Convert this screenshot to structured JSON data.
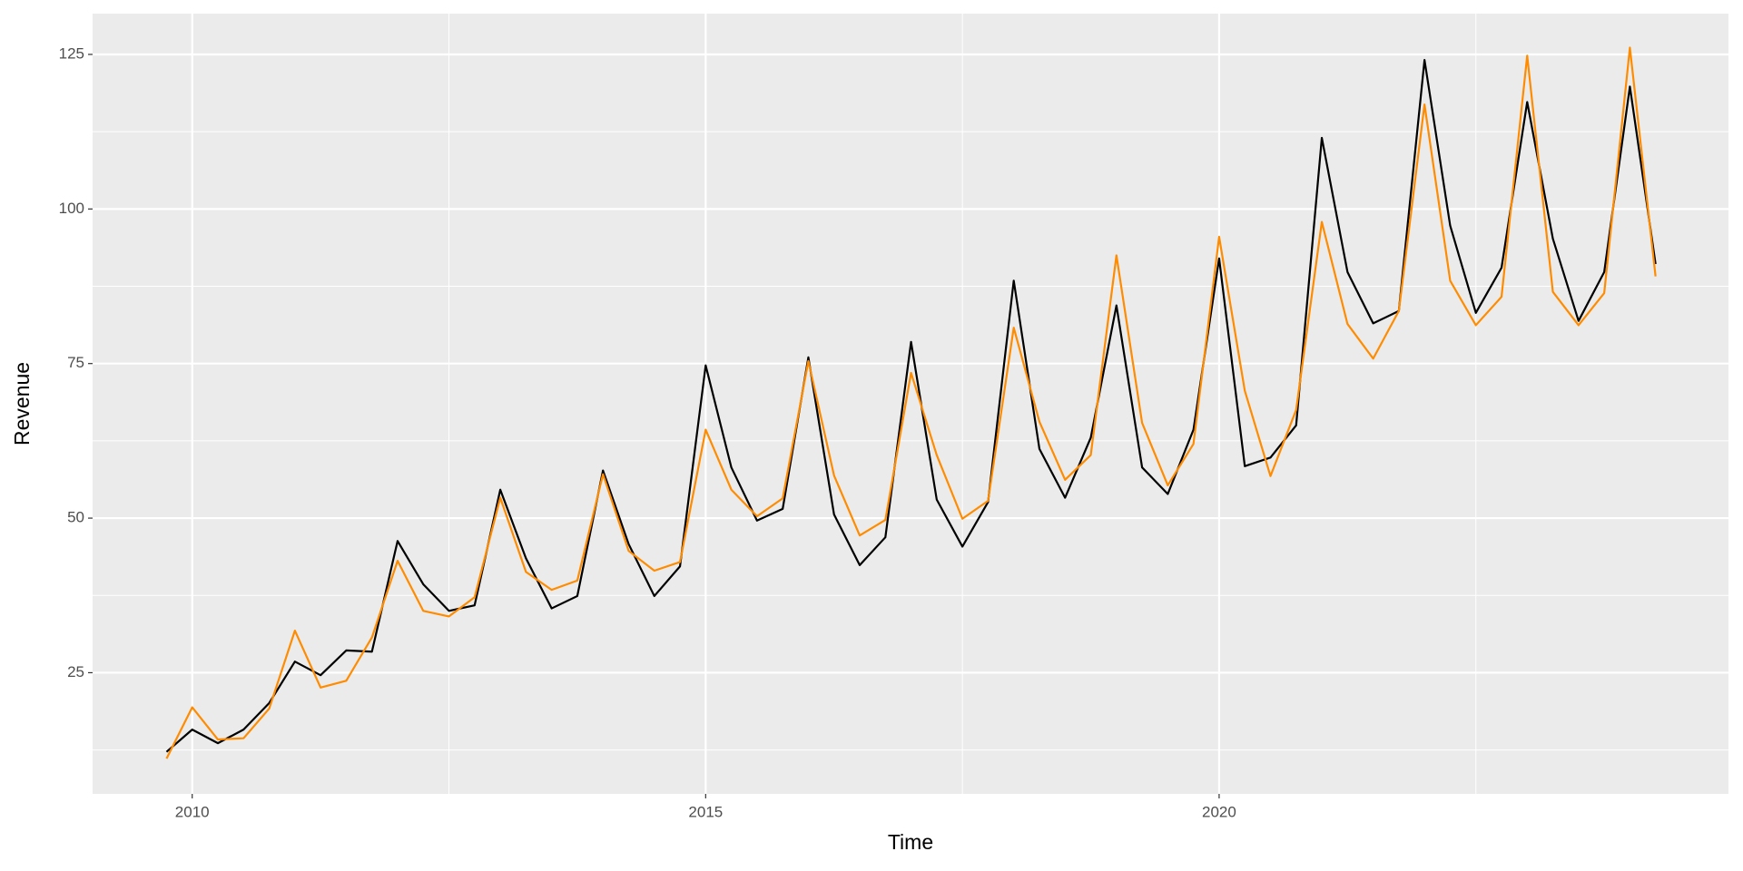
{
  "chart_data": {
    "type": "line",
    "x_label": "Time",
    "y_label": "Revenue",
    "x": [
      2009.75,
      2010,
      2010.25,
      2010.5,
      2010.75,
      2011,
      2011.25,
      2011.5,
      2011.75,
      2012,
      2012.25,
      2012.5,
      2012.75,
      2013,
      2013.25,
      2013.5,
      2013.75,
      2014,
      2014.25,
      2014.5,
      2014.75,
      2015,
      2015.25,
      2015.5,
      2015.75,
      2016,
      2016.25,
      2016.5,
      2016.75,
      2017,
      2017.25,
      2017.5,
      2017.75,
      2018,
      2018.25,
      2018.5,
      2018.75,
      2019,
      2019.25,
      2019.5,
      2019.75,
      2020,
      2020.25,
      2020.5,
      2020.75,
      2021,
      2021.25,
      2021.5,
      2021.75,
      2022,
      2022.25,
      2022.5,
      2022.75,
      2023,
      2023.25,
      2023.5,
      2023.75,
      2024,
      2024.25
    ],
    "series": [
      {
        "color": "#000000",
        "values": [
          12.2,
          15.8,
          13.6,
          15.8,
          20.1,
          26.8,
          24.6,
          28.6,
          28.4,
          46.3,
          39.3,
          35.0,
          35.9,
          54.6,
          43.5,
          35.4,
          37.4,
          57.7,
          45.8,
          37.4,
          42.2,
          74.7,
          58.2,
          49.6,
          51.5,
          76.0,
          50.6,
          42.4,
          46.9,
          78.5,
          53.0,
          45.4,
          52.6,
          88.4,
          61.2,
          53.3,
          63.0,
          84.4,
          58.2,
          53.9,
          64.3,
          92.0,
          58.4,
          59.8,
          65.0,
          111.5,
          89.8,
          81.5,
          83.5,
          124.1,
          97.3,
          83.2,
          90.5,
          117.3,
          95.2,
          81.9,
          89.8,
          119.8,
          91.1
        ]
      },
      {
        "color": "#ff8c00",
        "values": [
          11.1,
          19.4,
          14.2,
          14.4,
          19.2,
          31.8,
          22.6,
          23.7,
          30.7,
          43.1,
          35.0,
          34.1,
          37.2,
          53.3,
          41.3,
          38.4,
          39.9,
          57.1,
          44.7,
          41.5,
          42.9,
          64.3,
          54.6,
          50.3,
          53.2,
          75.4,
          56.9,
          47.2,
          49.7,
          73.5,
          60.2,
          49.9,
          52.8,
          80.8,
          65.6,
          56.2,
          60.2,
          92.5,
          65.4,
          55.3,
          62.0,
          95.5,
          70.6,
          56.8,
          67.5,
          97.9,
          81.4,
          75.8,
          83.5,
          116.9,
          88.4,
          81.2,
          85.8,
          124.8,
          86.6,
          81.2,
          86.4,
          126.1,
          89.1
        ]
      }
    ],
    "xlim": [
      2009.03,
      2024.96
    ],
    "xticks": [
      2010,
      2015,
      2020
    ],
    "ylim": [
      5.4,
      131.6
    ],
    "yticks": [
      25,
      50,
      75,
      100,
      125
    ],
    "grid": true
  }
}
